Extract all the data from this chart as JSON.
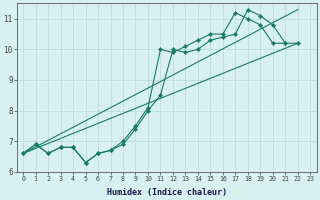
{
  "xlabel": "Humidex (Indice chaleur)",
  "bg_color": "#d8f0f0",
  "grid_color": "#b8d8d8",
  "line_color": "#1a7a6a",
  "xlim": [
    -0.5,
    23.5
  ],
  "ylim": [
    6,
    11.5
  ],
  "yticks": [
    6,
    7,
    8,
    9,
    10,
    11
  ],
  "xticks": [
    0,
    1,
    2,
    3,
    4,
    5,
    6,
    7,
    8,
    9,
    10,
    11,
    12,
    13,
    14,
    15,
    16,
    17,
    18,
    19,
    20,
    21,
    22,
    23
  ],
  "line1_x": [
    0,
    1,
    2,
    3,
    4,
    5,
    6,
    7,
    8,
    9,
    10,
    11,
    12,
    13,
    14,
    15,
    16,
    17,
    18,
    19,
    20,
    21,
    22
  ],
  "line1_y": [
    6.6,
    6.9,
    6.6,
    6.8,
    6.8,
    6.3,
    6.6,
    6.7,
    6.9,
    7.4,
    8.0,
    8.5,
    10.0,
    9.9,
    10.0,
    10.3,
    10.4,
    10.5,
    11.3,
    11.1,
    10.8,
    10.2,
    10.2
  ],
  "line2_x": [
    0,
    1,
    2,
    3,
    4,
    5,
    6,
    7,
    8,
    9,
    10,
    11,
    12,
    13,
    14,
    15,
    16,
    17,
    18,
    19,
    20,
    21
  ],
  "line2_y": [
    6.6,
    6.9,
    6.6,
    6.8,
    6.8,
    6.3,
    6.6,
    6.7,
    7.0,
    7.5,
    8.1,
    10.0,
    9.9,
    10.1,
    10.3,
    10.5,
    10.5,
    11.2,
    11.0,
    10.8,
    10.2,
    10.2
  ],
  "trend1_x": [
    0,
    22
  ],
  "trend1_y": [
    6.6,
    10.2
  ],
  "trend2_x": [
    0,
    22
  ],
  "trend2_y": [
    6.6,
    11.3
  ]
}
